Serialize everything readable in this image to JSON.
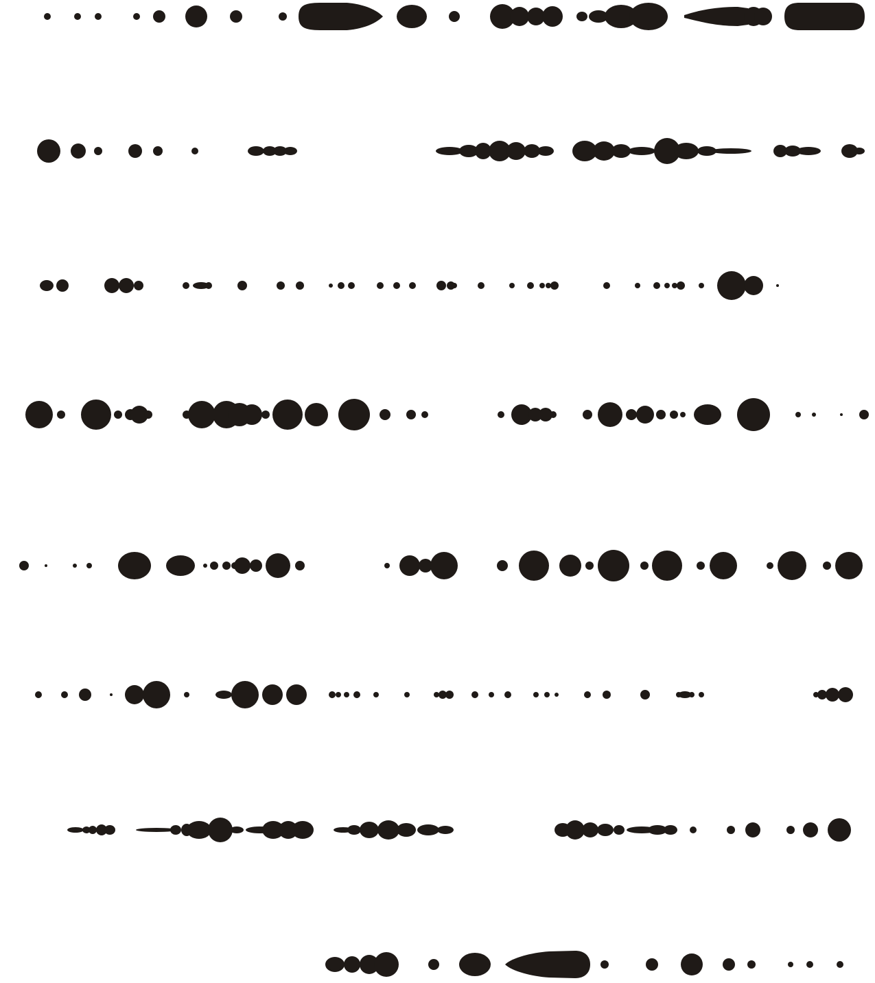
{
  "artwork": {
    "description_visible_text": "",
    "ink_color": "#1f1a17",
    "background_color": "#ffffff",
    "row_count": 8
  }
}
